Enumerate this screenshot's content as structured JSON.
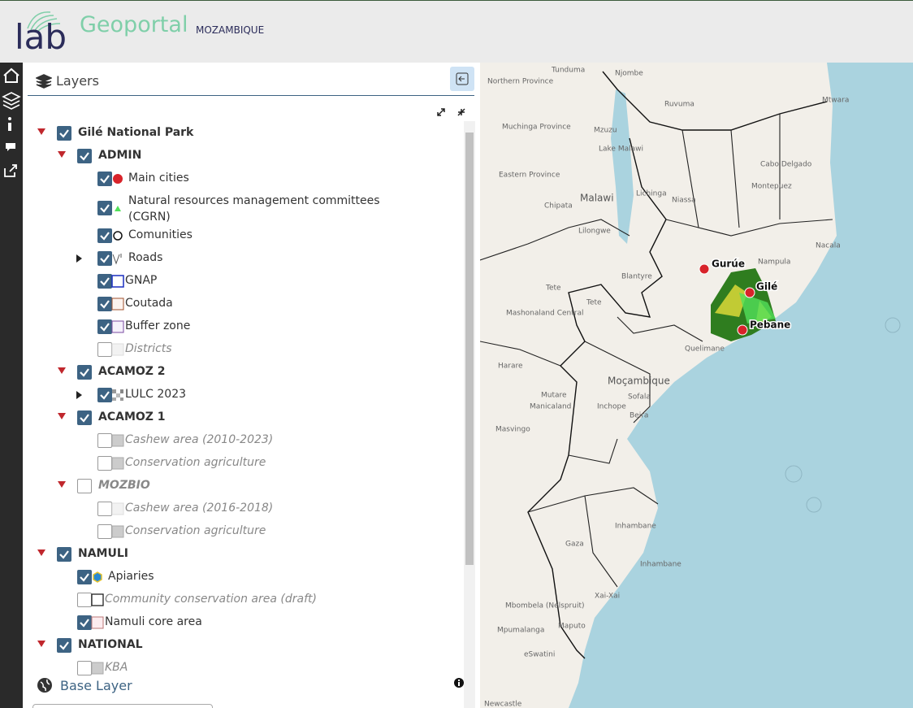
{
  "header": {
    "logo": "lab",
    "title": "Geoportal",
    "subtitle": "MOZAMBIQUE"
  },
  "panel": {
    "title": "Layers",
    "footer": "Base Layer"
  },
  "tree": [
    {
      "label": "Gilé National Park",
      "checked": true,
      "children": [
        {
          "label": "ADMIN",
          "checked": true,
          "children": [
            {
              "label": "Main cities",
              "checked": true,
              "icon": "red-dot"
            },
            {
              "label": "Natural resources management committees (CGRN)",
              "checked": true,
              "icon": "green-triangle"
            },
            {
              "label": "Comunities",
              "checked": true,
              "icon": "circle"
            },
            {
              "label": "Roads",
              "checked": true,
              "icon": "roads",
              "expandable": true
            },
            {
              "label": "GNAP",
              "checked": true,
              "icon": "blue-square"
            },
            {
              "label": "Coutada",
              "checked": true,
              "icon": "brown-square"
            },
            {
              "label": "Buffer zone",
              "checked": true,
              "icon": "purple-square"
            },
            {
              "label": "Districts",
              "checked": false,
              "icon": "pale-square"
            }
          ]
        },
        {
          "label": "ACAMOZ 2",
          "checked": true,
          "children": [
            {
              "label": "LULC 2023",
              "checked": true,
              "icon": "raster",
              "expandable": true
            }
          ]
        },
        {
          "label": "ACAMOZ 1",
          "checked": true,
          "children": [
            {
              "label": "Cashew area (2010-2023)",
              "checked": false,
              "icon": "grey-square"
            },
            {
              "label": "Conservation agriculture",
              "checked": false,
              "icon": "grey-square"
            }
          ]
        },
        {
          "label": "MOZBIO",
          "checked": false,
          "children": [
            {
              "label": "Cashew area (2016-2018)",
              "checked": false,
              "icon": "pale-square"
            },
            {
              "label": "Conservation agriculture",
              "checked": false,
              "icon": "grey-square"
            }
          ]
        }
      ]
    },
    {
      "label": "NAMULI",
      "checked": true,
      "children": [
        {
          "label": "Apiaries",
          "checked": true,
          "icon": "hex"
        },
        {
          "label": "Community conservation area (draft)",
          "checked": false,
          "icon": "black-square"
        },
        {
          "label": "Namuli core area",
          "checked": true,
          "icon": "pink-square"
        }
      ]
    },
    {
      "label": "NATIONAL",
      "checked": true,
      "children": [
        {
          "label": "KBA",
          "checked": false,
          "icon": "grey-square"
        }
      ]
    }
  ],
  "map": {
    "labels": [
      "Tunduma",
      "Njombe",
      "Ruvuma",
      "Mtwara",
      "Northern Province",
      "Muchinga Province",
      "Mzuzu",
      "Lake Malawi",
      "Eastern Province",
      "Chipata",
      "Malawi",
      "Lichinga",
      "Niassa",
      "Cabo Delgado",
      "Montepuez",
      "Lilongwe",
      "Nampula",
      "Nacala",
      "Blantyre",
      "Tete",
      "Tete",
      "Mashonaland Central",
      "Harare",
      "Quelimane",
      "Moçambique",
      "Mutare",
      "Sofala",
      "Manicaland",
      "Inchope",
      "Beira",
      "Masvingo",
      "Inhambane",
      "Gaza",
      "Inhambane",
      "Xai-Xai",
      "Mbombela (Nelspruit)",
      "Mpumalanga",
      "Maputo",
      "eSwatini",
      "Newcastle",
      "Gurúe",
      "Gilé",
      "Pebane"
    ]
  }
}
